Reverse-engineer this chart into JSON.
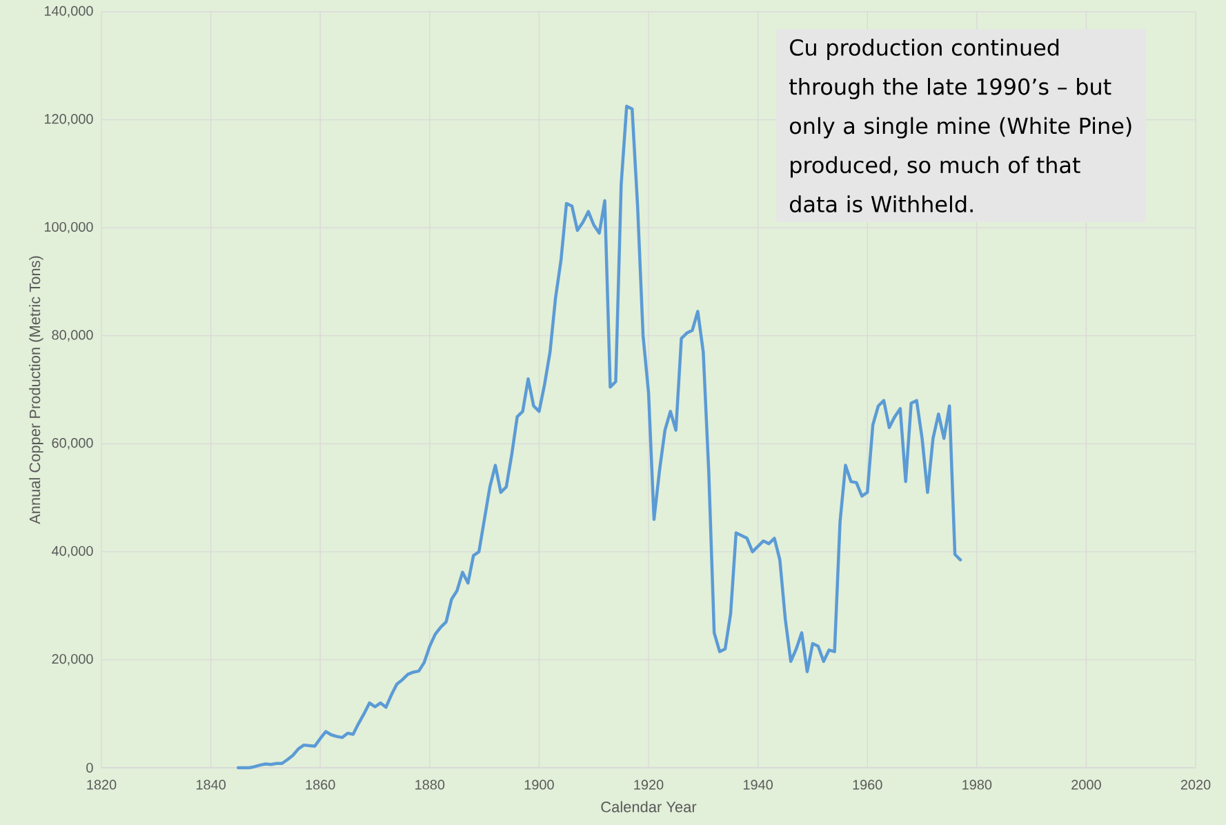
{
  "chart_data": {
    "type": "line",
    "xlabel": "Calendar Year",
    "ylabel": "Annual Copper Production (Metric Tons)",
    "annotations": [
      "Cu production continued through the late 1990’s – but only a single mine (White Pine) produced, so much of that data is Withheld."
    ],
    "x": [
      1845,
      1846,
      1847,
      1848,
      1849,
      1850,
      1851,
      1852,
      1853,
      1854,
      1855,
      1856,
      1857,
      1858,
      1859,
      1860,
      1861,
      1862,
      1863,
      1864,
      1865,
      1866,
      1867,
      1868,
      1869,
      1870,
      1871,
      1872,
      1873,
      1874,
      1875,
      1876,
      1877,
      1878,
      1879,
      1880,
      1881,
      1882,
      1883,
      1884,
      1885,
      1886,
      1887,
      1888,
      1889,
      1890,
      1891,
      1892,
      1893,
      1894,
      1895,
      1896,
      1897,
      1898,
      1899,
      1900,
      1901,
      1902,
      1903,
      1904,
      1905,
      1906,
      1907,
      1908,
      1909,
      1910,
      1911,
      1912,
      1913,
      1914,
      1915,
      1916,
      1917,
      1918,
      1919,
      1920,
      1921,
      1922,
      1923,
      1924,
      1925,
      1926,
      1927,
      1928,
      1929,
      1930,
      1931,
      1932,
      1933,
      1934,
      1935,
      1936,
      1937,
      1938,
      1939,
      1940,
      1941,
      1942,
      1943,
      1944,
      1945,
      1946,
      1947,
      1948,
      1949,
      1950,
      1951,
      1952,
      1953,
      1954,
      1955,
      1956,
      1957,
      1958,
      1959,
      1960,
      1961,
      1962,
      1963,
      1964,
      1965,
      1966,
      1967,
      1968,
      1969,
      1970,
      1971,
      1972,
      1973,
      1974,
      1975,
      1976,
      1977
    ],
    "series": [
      {
        "color": "#5b9bd5",
        "values": [
          0,
          0,
          0,
          200,
          500,
          700,
          600,
          800,
          800,
          1500,
          2300,
          3500,
          4200,
          4100,
          4000,
          5400,
          6700,
          6100,
          5800,
          5600,
          6400,
          6200,
          8200,
          10000,
          12000,
          11300,
          12000,
          11200,
          13500,
          15500,
          16300,
          17300,
          17700,
          17900,
          19500,
          22500,
          24700,
          26000,
          27000,
          31200,
          32800,
          36200,
          34200,
          39300,
          40000,
          46000,
          52000,
          56000,
          51000,
          52000,
          58000,
          65000,
          66000,
          72000,
          67000,
          66000,
          71000,
          77000,
          87000,
          94000,
          104500,
          104000,
          99500,
          101000,
          103000,
          100500,
          99000,
          105000,
          70500,
          71500,
          108000,
          122500,
          122000,
          104000,
          80000,
          69500,
          46000,
          55000,
          62500,
          66000,
          62500,
          79500,
          80500,
          81000,
          84500,
          77000,
          55000,
          25000,
          21500,
          22000,
          28500,
          43500,
          43000,
          42500,
          40000,
          41000,
          42000,
          41500,
          42500,
          38500,
          27500,
          19700,
          22000,
          25000,
          17800,
          23000,
          22500,
          19700,
          21800,
          21500,
          45500,
          56000,
          53000,
          52800,
          50300,
          51000,
          63500,
          67000,
          68000,
          63000,
          65000,
          66500,
          53000,
          67500,
          68000,
          61000,
          51000,
          61000,
          65500,
          61000,
          67000,
          39500,
          38500
        ]
      }
    ],
    "xlim": [
      1820,
      2020
    ],
    "xticks": [
      1820,
      1840,
      1860,
      1880,
      1900,
      1920,
      1940,
      1960,
      1980,
      2000,
      2020
    ],
    "ylim": [
      0,
      140000
    ],
    "yticks": [
      {
        "value": 0,
        "label": "0"
      },
      {
        "value": 20000,
        "label": "20,000"
      },
      {
        "value": 40000,
        "label": "40,000"
      },
      {
        "value": 60000,
        "label": "60,000"
      },
      {
        "value": 80000,
        "label": "80,000"
      },
      {
        "value": 100000,
        "label": "100,000"
      },
      {
        "value": 120000,
        "label": "120,000"
      },
      {
        "value": 140000,
        "label": "140,000"
      }
    ],
    "grid": true,
    "marker": "none",
    "line_style": "solid"
  }
}
